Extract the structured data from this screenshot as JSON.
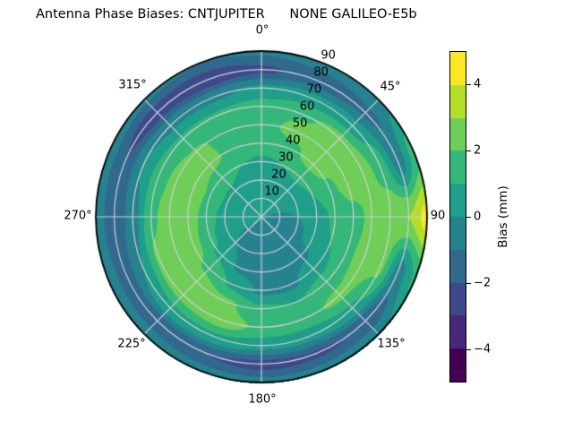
{
  "title": "Antenna Phase Biases: CNTJUPITER      NONE GALILEO-E5b",
  "chart_data": {
    "type": "heatmap",
    "subtype": "polar_filled_contour",
    "title": "Antenna Phase Biases: CNTJUPITER      NONE GALILEO-E5b",
    "value_label": "Bias (mm)",
    "colormap": "viridis",
    "levels_mm": [
      -5,
      -4,
      -3,
      -2,
      -1,
      0,
      1,
      2,
      3,
      4,
      5
    ],
    "angular_tick_labels": [
      "0°",
      "45°",
      "90",
      "135°",
      "180°",
      "225°",
      "270°",
      "315°"
    ],
    "radial_tick_labels": [
      "10",
      "20",
      "30",
      "40",
      "50",
      "60",
      "70",
      "80",
      "90"
    ],
    "radial_range": [
      0,
      90
    ],
    "grid_on": true,
    "colorbar": {
      "label": "Bias (mm)",
      "tick_values": [
        4,
        2,
        0,
        -2,
        -4
      ],
      "tick_labels": [
        "4",
        "2",
        "0",
        "−2",
        "−4"
      ],
      "range": [
        -5,
        5
      ],
      "segment_colors_top_to_bottom": [
        "#fde725",
        "#b5de2b",
        "#6ece58",
        "#35b779",
        "#1f9e89",
        "#26828e",
        "#31688e",
        "#3e4989",
        "#482878",
        "#440154"
      ]
    },
    "grid_line_color": "#cfcfd9",
    "outline_color": "#000000",
    "field": {
      "azimuth_deg": [
        0,
        22.5,
        45,
        67.5,
        90,
        112.5,
        135,
        157.5,
        180,
        202.5,
        225,
        247.5,
        270,
        292.5,
        315,
        337.5
      ],
      "zenith_deg": [
        0,
        10,
        20,
        30,
        40,
        50,
        60,
        70,
        80,
        90
      ],
      "bias_mm": [
        [
          0.1,
          0.2,
          0.3,
          0.8,
          1.5,
          1.8,
          1.5,
          0.2,
          -2.2,
          -0.8
        ],
        [
          0.1,
          0.2,
          0.4,
          1.0,
          1.8,
          2.2,
          1.9,
          0.4,
          -1.6,
          -0.5
        ],
        [
          0.1,
          0.2,
          0.5,
          1.2,
          2.4,
          2.7,
          2.3,
          0.5,
          -1.2,
          -0.3
        ],
        [
          0.0,
          0.1,
          0.3,
          1.0,
          1.8,
          2.4,
          2.5,
          1.6,
          -0.6,
          1.5
        ],
        [
          -0.1,
          -0.2,
          0.0,
          0.5,
          1.2,
          1.7,
          2.2,
          2.6,
          3.0,
          4.4
        ],
        [
          -0.1,
          -0.2,
          -0.2,
          0.3,
          1.0,
          1.8,
          2.4,
          2.2,
          -0.5,
          1.2
        ],
        [
          0.0,
          -0.3,
          -0.4,
          -0.2,
          0.5,
          1.6,
          2.2,
          0.8,
          -1.8,
          -0.3
        ],
        [
          -0.1,
          -0.4,
          -0.5,
          -0.4,
          -0.2,
          1.0,
          1.8,
          0.3,
          -2.2,
          -0.5
        ],
        [
          -0.1,
          -0.4,
          -0.6,
          -0.5,
          -0.2,
          1.2,
          1.8,
          0.3,
          -2.4,
          -0.6
        ],
        [
          0.0,
          -0.3,
          -0.4,
          -0.2,
          0.8,
          2.2,
          2.6,
          0.8,
          -2.0,
          -0.5
        ],
        [
          0.1,
          -0.1,
          0.0,
          0.8,
          1.8,
          2.6,
          2.4,
          0.8,
          -1.6,
          -0.4
        ],
        [
          0.2,
          0.1,
          0.3,
          1.2,
          2.4,
          2.8,
          2.2,
          0.0,
          -1.6,
          -0.3
        ],
        [
          0.3,
          0.2,
          0.5,
          1.5,
          2.6,
          2.6,
          1.8,
          -0.5,
          -1.8,
          -0.4
        ],
        [
          0.3,
          0.3,
          0.8,
          1.8,
          2.6,
          2.4,
          1.5,
          0.1,
          -2.0,
          -0.5
        ],
        [
          0.3,
          0.4,
          0.8,
          1.5,
          2.2,
          2.1,
          1.2,
          -0.2,
          -2.6,
          -0.8
        ],
        [
          0.2,
          0.3,
          0.5,
          1.0,
          1.8,
          1.8,
          1.2,
          -0.2,
          -2.8,
          -1.0
        ]
      ]
    }
  }
}
